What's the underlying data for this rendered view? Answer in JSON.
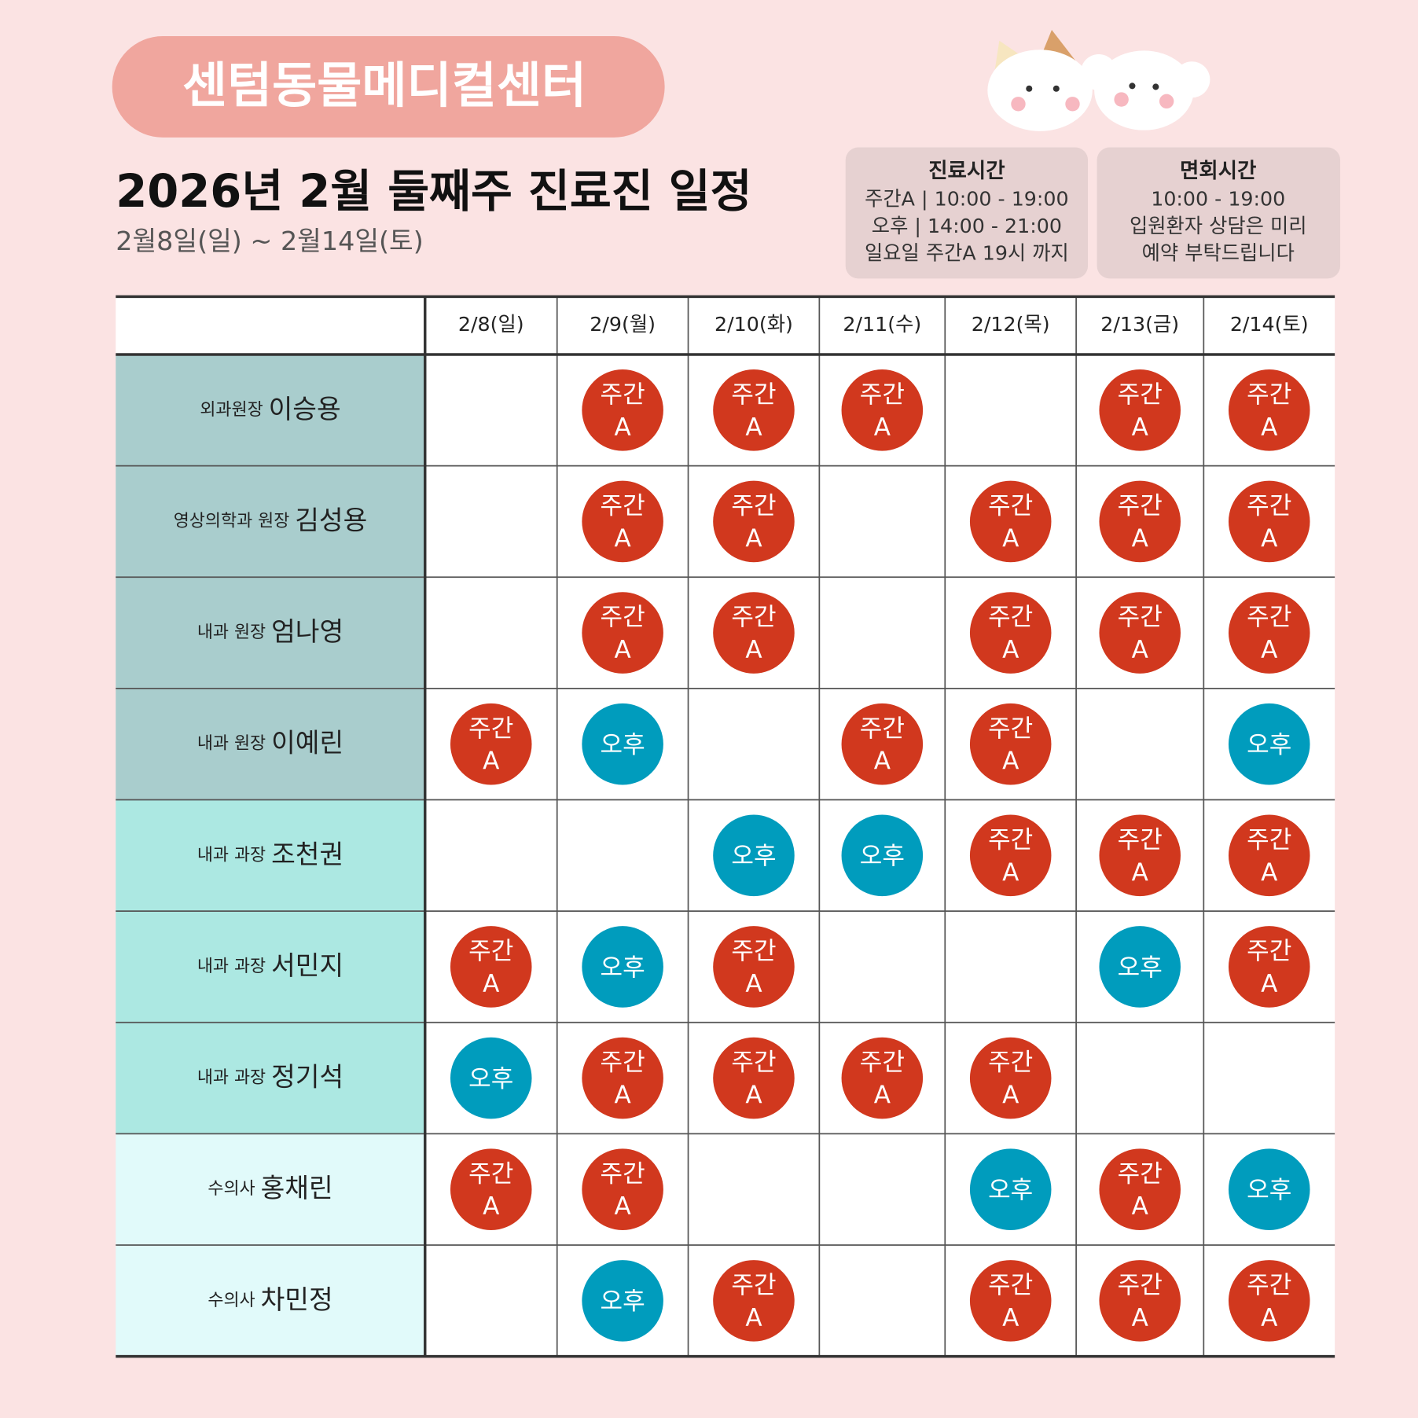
{
  "header": {
    "badge": "센텀동물메디컬센터",
    "title": "2026년 2월 둘째주 진료진 일정",
    "subtitle": "2월8일(일) ~ 2월14일(토)"
  },
  "info": [
    {
      "title": "진료시간",
      "lines": [
        "주간A | 10:00 - 19:00",
        "오후 | 14:00 - 21:00",
        "일요일 주간A 19시 까지"
      ]
    },
    {
      "title": "면회시간",
      "lines": [
        "10:00 - 19:00",
        "입원환자 상담은 미리",
        "예약 부탁드립니다"
      ]
    }
  ],
  "table": {
    "columns": [
      "2/8(일)",
      "2/9(월)",
      "2/10(화)",
      "2/11(수)",
      "2/12(목)",
      "2/13(금)",
      "2/14(토)"
    ],
    "rows": [
      {
        "role": "외과원장",
        "name": "이승용",
        "cells": [
          null,
          [
            "주간",
            "A"
          ],
          [
            "주간",
            "A"
          ],
          [
            "주간",
            "A"
          ],
          null,
          [
            "주간",
            "A"
          ],
          [
            "주간",
            "A"
          ]
        ]
      },
      {
        "role": "영상의학과 원장",
        "name": "김성용",
        "cells": [
          null,
          [
            "주간",
            "A"
          ],
          [
            "주간",
            "A"
          ],
          null,
          [
            "주간",
            "A"
          ],
          [
            "주간",
            "A"
          ],
          [
            "주간",
            "A"
          ]
        ]
      },
      {
        "role": "내과 원장",
        "name": "엄나영",
        "cells": [
          null,
          [
            "주간",
            "A"
          ],
          [
            "주간",
            "A"
          ],
          null,
          [
            "주간",
            "A"
          ],
          [
            "주간",
            "A"
          ],
          [
            "주간",
            "A"
          ]
        ]
      },
      {
        "role": "내과 원장",
        "name": "이예린",
        "cells": [
          [
            "주간",
            "A"
          ],
          [
            "오후"
          ],
          null,
          [
            "주간",
            "A"
          ],
          [
            "주간",
            "A"
          ],
          null,
          [
            "오후"
          ]
        ]
      },
      {
        "role": "내과 과장",
        "name": "조천권",
        "cells": [
          null,
          null,
          [
            "오후"
          ],
          [
            "오후"
          ],
          [
            "주간",
            "A"
          ],
          [
            "주간",
            "A"
          ],
          [
            "주간",
            "A"
          ]
        ]
      },
      {
        "role": "내과 과장",
        "name": "서민지",
        "cells": [
          [
            "주간",
            "A"
          ],
          [
            "오후"
          ],
          [
            "주간",
            "A"
          ],
          null,
          null,
          [
            "오후"
          ],
          [
            "주간",
            "A"
          ]
        ]
      },
      {
        "role": "내과 과장",
        "name": "정기석",
        "cells": [
          [
            "오후"
          ],
          [
            "주간",
            "A"
          ],
          [
            "주간",
            "A"
          ],
          [
            "주간",
            "A"
          ],
          [
            "주간",
            "A"
          ],
          null,
          null
        ]
      },
      {
        "role": "수의사",
        "name": "홍채린",
        "cells": [
          [
            "주간",
            "A"
          ],
          [
            "주간",
            "A"
          ],
          null,
          null,
          [
            "오후"
          ],
          [
            "주간",
            "A"
          ],
          [
            "오후"
          ]
        ]
      },
      {
        "role": "수의사",
        "name": "차민정",
        "cells": [
          null,
          [
            "오후"
          ],
          [
            "주간",
            "A"
          ],
          null,
          [
            "주간",
            "A"
          ],
          [
            "주간",
            "A"
          ],
          [
            "주간",
            "A"
          ]
        ]
      }
    ]
  }
}
